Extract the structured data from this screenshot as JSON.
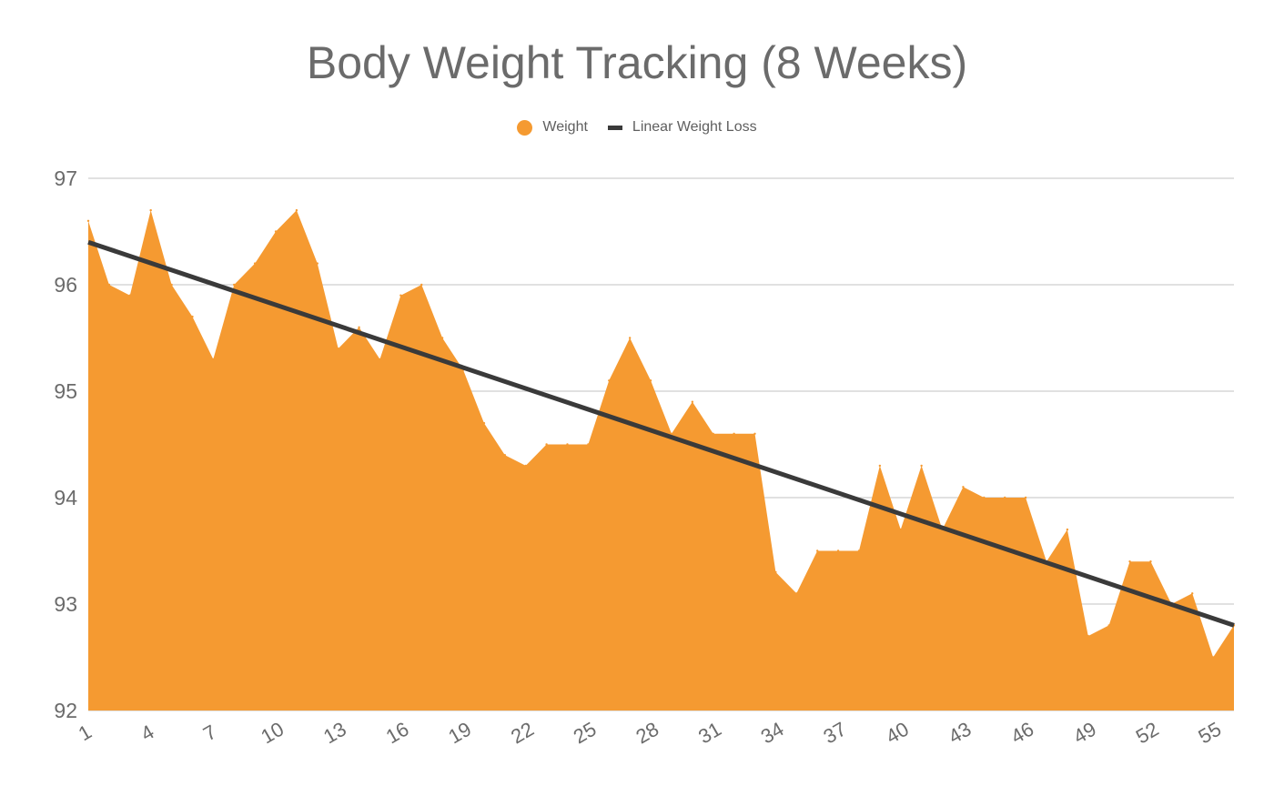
{
  "chart_data": {
    "type": "area",
    "title": "Body Weight Tracking (8 Weeks)",
    "legend": {
      "position": "top",
      "items": [
        {
          "label": "Weight",
          "marker": "dot-icon"
        },
        {
          "label": "Linear Weight Loss",
          "marker": "line-dash-icon"
        }
      ]
    },
    "x": [
      1,
      2,
      3,
      4,
      5,
      6,
      7,
      8,
      9,
      10,
      11,
      12,
      13,
      14,
      15,
      16,
      17,
      18,
      19,
      20,
      21,
      22,
      23,
      24,
      25,
      26,
      27,
      28,
      29,
      30,
      31,
      32,
      33,
      34,
      35,
      36,
      37,
      38,
      39,
      40,
      41,
      42,
      43,
      44,
      45,
      46,
      47,
      48,
      49,
      50,
      51,
      52,
      53,
      54,
      55,
      56
    ],
    "x_tick_labels": [
      "1",
      "4",
      "7",
      "10",
      "13",
      "16",
      "19",
      "22",
      "25",
      "28",
      "31",
      "34",
      "37",
      "40",
      "43",
      "46",
      "49",
      "52",
      "55"
    ],
    "ylim": [
      92,
      97
    ],
    "y_ticks": [
      "92",
      "93",
      "94",
      "95",
      "96",
      "97"
    ],
    "grid": true,
    "series": [
      {
        "name": "Weight",
        "type": "area",
        "color": "#f59a31",
        "values": [
          96.6,
          96.0,
          95.9,
          96.7,
          96.0,
          95.7,
          95.3,
          96.0,
          96.2,
          96.5,
          96.7,
          96.2,
          95.4,
          95.6,
          95.3,
          95.9,
          96.0,
          95.5,
          95.2,
          94.7,
          94.4,
          94.3,
          94.5,
          94.5,
          94.5,
          95.1,
          95.5,
          95.1,
          94.6,
          94.9,
          94.6,
          94.6,
          94.6,
          93.3,
          93.1,
          93.5,
          93.5,
          93.5,
          94.3,
          93.7,
          94.3,
          93.7,
          94.1,
          94.0,
          94.0,
          94.0,
          93.4,
          93.7,
          92.7,
          92.8,
          93.4,
          93.4,
          93.0,
          93.1,
          92.5,
          92.8
        ]
      },
      {
        "name": "Linear Weight Loss",
        "type": "line",
        "color": "#3a3a3a",
        "values_start": 96.4,
        "values_end": 92.8
      }
    ]
  }
}
